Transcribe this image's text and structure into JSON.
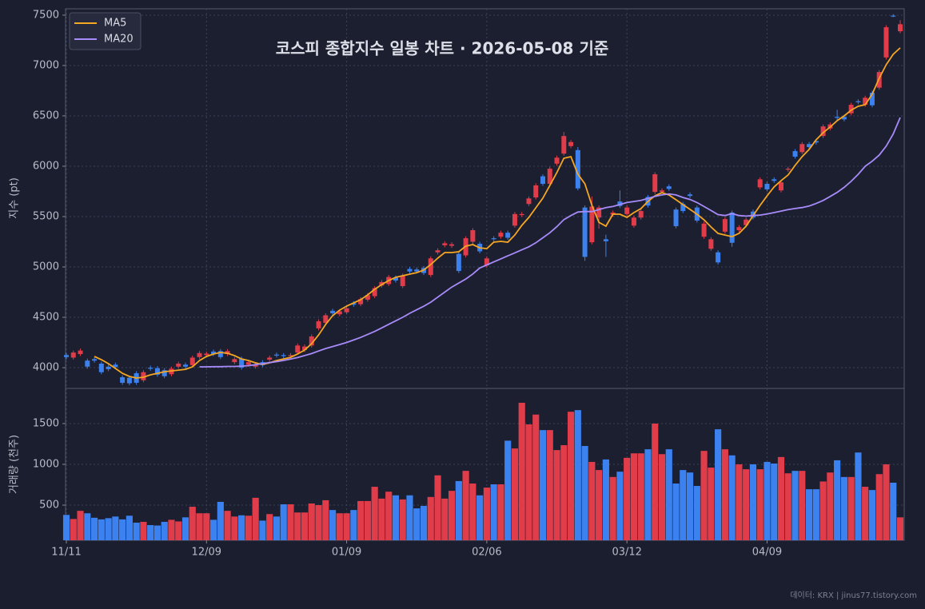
{
  "chart_data": [
    {
      "type": "candlestick",
      "title": "코스피 종합지수 일봉 차트 · 2026-05-08 기준",
      "ylabel": "지수 (pt)",
      "ylim": [
        3794,
        7563
      ],
      "yticks": [
        4000,
        4500,
        5000,
        5500,
        6000,
        6500,
        7000,
        7500
      ],
      "grid": true,
      "legend": "upper left",
      "up_color": "#e03c4a",
      "down_color": "#3b82f0",
      "open": [
        4125,
        4100,
        4135,
        4070,
        4085,
        4040,
        4010,
        4030,
        3905,
        3900,
        3945,
        3875,
        4000,
        3995,
        3975,
        3935,
        4010,
        4030,
        4025,
        4105,
        4125,
        4160,
        4165,
        4135,
        4055,
        4090,
        4030,
        4010,
        4055,
        4080,
        4130,
        4125,
        4115,
        4150,
        4175,
        4220,
        4390,
        4445,
        4565,
        4530,
        4550,
        4640,
        4630,
        4675,
        4710,
        4815,
        4830,
        4895,
        4810,
        4980,
        4975,
        4990,
        4920,
        5145,
        5215,
        5210,
        5130,
        5115,
        5250,
        5230,
        5015,
        5285,
        5300,
        5340,
        5410,
        5515,
        5625,
        5690,
        5900,
        5825,
        6025,
        6125,
        6200,
        6160,
        5590,
        5245,
        5490,
        5275,
        5520,
        5650,
        5525,
        5410,
        5490,
        5695,
        5745,
        5745,
        5800,
        5570,
        5625,
        5720,
        5590,
        5300,
        5180,
        5145,
        5350,
        5540,
        5365,
        5415,
        5550,
        5790,
        5825,
        5870,
        5760,
        5965,
        6150,
        6140,
        6220,
        6250,
        6300,
        6375,
        6490,
        6490,
        6525,
        6645,
        6610,
        6730,
        6780,
        7080,
        7495,
        7340
      ],
      "high": [
        4145,
        4170,
        4190,
        4090,
        4105,
        4060,
        4030,
        4050,
        3925,
        3920,
        3965,
        3975,
        4020,
        4015,
        3995,
        4010,
        4060,
        4050,
        4120,
        4165,
        4160,
        4180,
        4185,
        4185,
        4105,
        4110,
        4075,
        4045,
        4075,
        4120,
        4150,
        4145,
        4145,
        4240,
        4230,
        4330,
        4480,
        4540,
        4585,
        4580,
        4610,
        4660,
        4700,
        4740,
        4810,
        4870,
        4920,
        4915,
        4935,
        5000,
        4995,
        5010,
        5105,
        5185,
        5255,
        5245,
        5150,
        5305,
        5385,
        5250,
        5105,
        5305,
        5360,
        5360,
        5545,
        5545,
        5700,
        5830,
        5920,
        5995,
        6105,
        6340,
        6260,
        6190,
        5610,
        5700,
        5610,
        5320,
        5560,
        5760,
        5610,
        5510,
        5575,
        5715,
        5940,
        5780,
        5820,
        5590,
        5645,
        5740,
        5610,
        5450,
        5295,
        5165,
        5495,
        5560,
        5415,
        5490,
        5570,
        5890,
        5845,
        5890,
        5860,
        5995,
        6170,
        6240,
        6240,
        6270,
        6415,
        6435,
        6560,
        6510,
        6630,
        6665,
        6700,
        6750,
        6955,
        7400,
        7510,
        7450
      ],
      "low": [
        4085,
        4080,
        4115,
        3990,
        4050,
        3935,
        3965,
        3985,
        3830,
        3825,
        3830,
        3855,
        3970,
        3910,
        3895,
        3915,
        3990,
        3990,
        4005,
        4085,
        4105,
        4115,
        4085,
        4115,
        4035,
        3980,
        4010,
        3990,
        4005,
        4060,
        4100,
        4095,
        4095,
        4130,
        4155,
        4200,
        4370,
        4425,
        4520,
        4510,
        4530,
        4605,
        4610,
        4655,
        4690,
        4795,
        4810,
        4845,
        4790,
        4935,
        4935,
        4920,
        4900,
        5125,
        5195,
        5190,
        4940,
        5095,
        5230,
        5135,
        4995,
        5255,
        5280,
        5270,
        5390,
        5495,
        5605,
        5670,
        5805,
        5805,
        6005,
        6105,
        6180,
        5760,
        5060,
        5225,
        5380,
        5100,
        5500,
        5585,
        5505,
        5390,
        5470,
        5590,
        5725,
        5725,
        5755,
        5385,
        5535,
        5685,
        5440,
        5280,
        5160,
        5025,
        5330,
        5200,
        5345,
        5395,
        5470,
        5770,
        5750,
        5835,
        5740,
        5945,
        6075,
        6120,
        6170,
        6215,
        6280,
        6355,
        6460,
        6445,
        6505,
        6615,
        6590,
        6585,
        6760,
        7060,
        7480,
        7320
      ],
      "close": [
        4105,
        4150,
        4170,
        4010,
        4070,
        3955,
        3985,
        4005,
        3850,
        3845,
        3850,
        3955,
        3990,
        3930,
        3915,
        3990,
        4040,
        4010,
        4100,
        4145,
        4140,
        4135,
        4105,
        4165,
        4085,
        4000,
        4055,
        4025,
        4025,
        4100,
        4120,
        4115,
        4125,
        4220,
        4210,
        4310,
        4460,
        4520,
        4540,
        4560,
        4590,
        4625,
        4680,
        4720,
        4790,
        4850,
        4900,
        4865,
        4915,
        4955,
        4955,
        4940,
        5085,
        5165,
        5235,
        5225,
        4960,
        5285,
        5365,
        5155,
        5085,
        5275,
        5340,
        5290,
        5525,
        5525,
        5680,
        5810,
        5825,
        5975,
        6085,
        6300,
        6240,
        5780,
        5100,
        5600,
        5590,
        5255,
        5540,
        5605,
        5590,
        5490,
        5555,
        5610,
        5920,
        5760,
        5775,
        5405,
        5555,
        5705,
        5460,
        5430,
        5275,
        5045,
        5475,
        5240,
        5395,
        5470,
        5490,
        5870,
        5770,
        5855,
        5840,
        5975,
        6095,
        6220,
        6190,
        6235,
        6395,
        6415,
        6480,
        6465,
        6610,
        6635,
        6680,
        6605,
        6935,
        7380,
        7490,
        7410
      ],
      "series": [
        {
          "name": "MA5",
          "color": "#f5a623",
          "values": [
            null,
            null,
            null,
            null,
            4111,
            4080,
            4040,
            3992,
            3944,
            3913,
            3897,
            3905,
            3929,
            3944,
            3960,
            3968,
            3976,
            3984,
            4008,
            4071,
            4111,
            4135,
            4151,
            4143,
            4119,
            4087,
            4071,
            4048,
            4032,
            4048,
            4071,
            4087,
            4103,
            4135,
            4175,
            4238,
            4325,
            4429,
            4516,
            4571,
            4611,
            4643,
            4675,
            4722,
            4778,
            4825,
            4865,
            4897,
            4913,
            4929,
            4944,
            4968,
            5024,
            5087,
            5143,
            5143,
            5151,
            5206,
            5222,
            5190,
            5182,
            5246,
            5254,
            5246,
            5317,
            5413,
            5492,
            5587,
            5683,
            5810,
            5937,
            6079,
            6095,
            5921,
            5825,
            5611,
            5444,
            5405,
            5524,
            5524,
            5492,
            5540,
            5579,
            5651,
            5706,
            5738,
            5714,
            5667,
            5619,
            5571,
            5524,
            5468,
            5397,
            5333,
            5317,
            5301,
            5333,
            5405,
            5508,
            5611,
            5706,
            5794,
            5857,
            5913,
            6008,
            6095,
            6167,
            6262,
            6333,
            6389,
            6452,
            6500,
            6556,
            6595,
            6611,
            6714,
            6873,
            7008,
            7111,
            7175
          ]
        },
        {
          "name": "MA20",
          "color": "#a78bfa",
          "values": [
            null,
            null,
            null,
            null,
            null,
            null,
            null,
            null,
            null,
            null,
            null,
            null,
            null,
            null,
            null,
            null,
            null,
            null,
            null,
            4008,
            4008,
            4010,
            4010,
            4012,
            4012,
            4015,
            4020,
            4030,
            4040,
            4050,
            4060,
            4072,
            4085,
            4100,
            4120,
            4140,
            4165,
            4190,
            4210,
            4230,
            4250,
            4275,
            4300,
            4330,
            4360,
            4395,
            4430,
            4465,
            4500,
            4540,
            4575,
            4610,
            4650,
            4700,
            4750,
            4800,
            4840,
            4880,
            4930,
            4990,
            5020,
            5050,
            5080,
            5110,
            5140,
            5170,
            5200,
            5240,
            5290,
            5340,
            5400,
            5470,
            5510,
            5545,
            5550,
            5550,
            5570,
            5590,
            5600,
            5620,
            5640,
            5650,
            5660,
            5680,
            5700,
            5715,
            5725,
            5715,
            5690,
            5670,
            5640,
            5600,
            5560,
            5520,
            5510,
            5530,
            5510,
            5505,
            5510,
            5515,
            5525,
            5540,
            5555,
            5570,
            5580,
            5590,
            5605,
            5630,
            5660,
            5700,
            5740,
            5790,
            5850,
            5920,
            6000,
            6050,
            6110,
            6200,
            6320,
            6484
          ]
        }
      ]
    },
    {
      "type": "bar",
      "ylabel": "거래량 (천주)",
      "ylim": [
        69,
        1931
      ],
      "yticks": [
        500,
        1000,
        1500
      ],
      "grid": true,
      "up_color": "#e03c4a",
      "down_color": "#3b82f0",
      "source": "데이터: KRX | jinus77.tistory.com",
      "categories": [
        "11/11",
        null,
        null,
        null,
        null,
        null,
        null,
        null,
        null,
        null,
        null,
        null,
        null,
        null,
        null,
        null,
        null,
        null,
        null,
        null,
        "12/09",
        null,
        null,
        null,
        null,
        null,
        null,
        null,
        null,
        null,
        null,
        null,
        null,
        null,
        null,
        null,
        null,
        null,
        null,
        null,
        "01/09",
        null,
        null,
        null,
        null,
        null,
        null,
        null,
        null,
        null,
        null,
        null,
        null,
        null,
        null,
        null,
        null,
        null,
        null,
        null,
        "02/06",
        null,
        null,
        null,
        null,
        null,
        null,
        null,
        null,
        null,
        null,
        null,
        null,
        null,
        null,
        null,
        null,
        null,
        null,
        null,
        "03/12",
        null,
        null,
        null,
        null,
        null,
        null,
        null,
        null,
        null,
        null,
        null,
        null,
        null,
        null,
        null,
        null,
        null,
        null,
        null,
        "04/09",
        null,
        null,
        null,
        null,
        null,
        null,
        null,
        null,
        null,
        null,
        null,
        null,
        null,
        null,
        null,
        null,
        null,
        null,
        null
      ],
      "values": [
        380,
        330,
        430,
        400,
        345,
        325,
        340,
        360,
        325,
        370,
        285,
        295,
        255,
        250,
        295,
        320,
        300,
        350,
        480,
        400,
        400,
        320,
        540,
        430,
        360,
        375,
        370,
        590,
        310,
        390,
        360,
        510,
        510,
        410,
        410,
        520,
        500,
        560,
        440,
        400,
        400,
        440,
        550,
        550,
        725,
        580,
        665,
        620,
        570,
        620,
        460,
        490,
        600,
        865,
        580,
        675,
        795,
        920,
        765,
        620,
        715,
        755,
        755,
        1290,
        1195,
        1755,
        1490,
        1610,
        1420,
        1420,
        1175,
        1235,
        1645,
        1665,
        1225,
        1030,
        930,
        1060,
        845,
        910,
        1080,
        1135,
        1135,
        1185,
        1500,
        1125,
        1185,
        765,
        930,
        900,
        735,
        1165,
        960,
        1430,
        1185,
        1110,
        1000,
        940,
        1000,
        940,
        1030,
        1010,
        1090,
        890,
        920,
        920,
        695,
        695,
        790,
        900,
        1050,
        845,
        845,
        1145,
        725,
        685,
        880,
        1000,
        775,
        350
      ]
    }
  ]
}
